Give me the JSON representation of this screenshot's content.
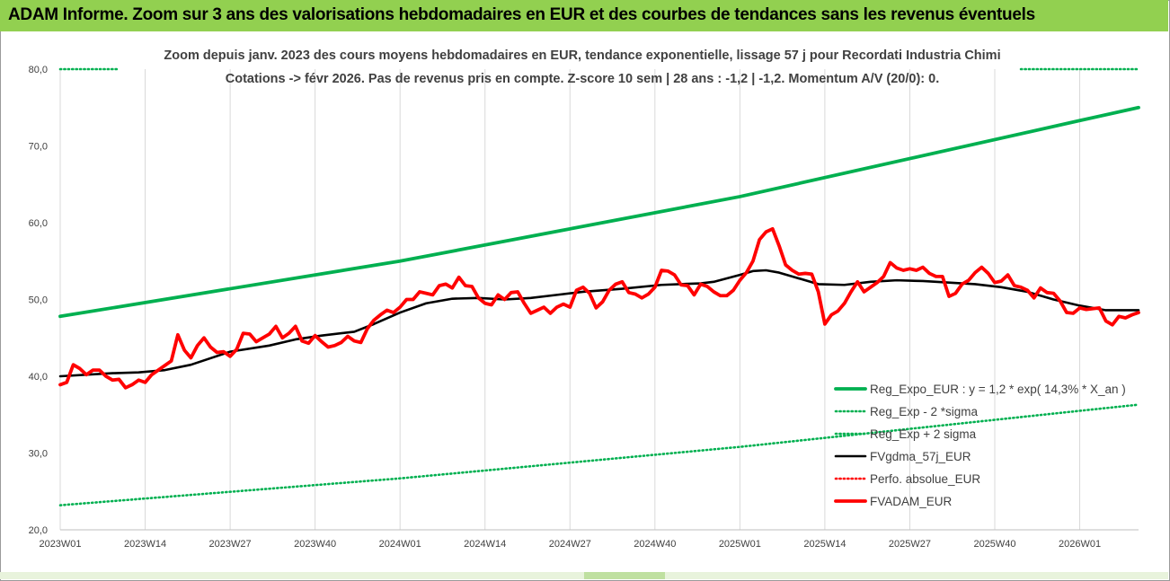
{
  "header": {
    "title": "ADAM Informe. Zoom sur 3 ans des valorisations hebdomadaires en EUR et des courbes de tendances sans les revenus éventuels"
  },
  "colors": {
    "header_bg": "#92d050",
    "green": "#00b050",
    "black": "#000000",
    "red": "#ff0000",
    "grid": "#d9d9d9"
  },
  "chart_data": {
    "type": "line",
    "title_lines": [
      "Zoom depuis janv. 2023 des cours moyens hebdomadaires en EUR, tendance exponentielle, lissage 57 j pour Recordati Industria Chimi",
      "Cotations -> févr 2026.  Pas de revenus pris en compte. Z-score 10 sem | 28 ans : -1,2 | -1,2. Momentum A/V (20/0): 0."
    ],
    "ylim": [
      20,
      80
    ],
    "y_ticks": [
      "20,0",
      "30,0",
      "40,0",
      "50,0",
      "60,0",
      "70,0",
      "80,0"
    ],
    "x_ticks": [
      "2023W01",
      "2023W14",
      "2023W27",
      "2023W40",
      "2024W01",
      "2024W14",
      "2024W27",
      "2024W40",
      "2025W01",
      "2025W14",
      "2025W27",
      "2025W40",
      "2026W01"
    ],
    "x_weeks": 165,
    "grid": "vertical",
    "legend_position": "bottom-right",
    "series": [
      {
        "name": "Reg_Expo_EUR : y = 1,2 * exp( 14,3% *  X_an )",
        "style": "solid-thick",
        "color": "#00b050",
        "x": [
          0,
          52,
          104,
          156,
          165
        ],
        "y": [
          47.8,
          55.0,
          63.4,
          73.3,
          75.0
        ]
      },
      {
        "name": "Reg_Exp - 2 *sigma",
        "style": "dotted",
        "color": "#00b050",
        "x": [
          0,
          52,
          104,
          156,
          165
        ],
        "y": [
          23.2,
          26.7,
          30.8,
          35.5,
          36.3
        ]
      },
      {
        "name": "Reg_Exp + 2 sigma",
        "style": "dotted",
        "color": "#00b050",
        "x": [
          0,
          165
        ],
        "y": [
          80,
          80
        ]
      },
      {
        "name": "FVgdma_57j_EUR",
        "style": "solid",
        "color": "#000000",
        "x": [
          0,
          8,
          12,
          16,
          20,
          26,
          32,
          36,
          40,
          45,
          48,
          52,
          56,
          60,
          64,
          68,
          72,
          76,
          80,
          86,
          92,
          98,
          100,
          104,
          106,
          108,
          110,
          112,
          116,
          120,
          124,
          128,
          132,
          136,
          140,
          144,
          148,
          152,
          156,
          160,
          165
        ],
        "y": [
          40.0,
          40.4,
          40.5,
          40.8,
          41.5,
          43.2,
          44.0,
          44.8,
          45.3,
          45.8,
          46.8,
          48.3,
          49.5,
          50.1,
          50.2,
          50.0,
          50.2,
          50.6,
          51.0,
          51.4,
          51.9,
          52.1,
          52.3,
          53.2,
          53.7,
          53.8,
          53.5,
          53.0,
          52.0,
          51.9,
          52.3,
          52.5,
          52.4,
          52.2,
          52.0,
          51.6,
          51.0,
          50.0,
          49.2,
          48.6,
          48.6
        ]
      },
      {
        "name": "Perfo. absolue_EUR",
        "style": "dotted",
        "color": "#ff0000",
        "x": [],
        "y": []
      },
      {
        "name": "FVADAM_EUR",
        "style": "solid-thick",
        "color": "#ff0000",
        "x": [
          0,
          1,
          2,
          3,
          4,
          5,
          6,
          7,
          8,
          9,
          10,
          11,
          12,
          13,
          14,
          15,
          16,
          17,
          18,
          19,
          20,
          21,
          22,
          23,
          24,
          25,
          26,
          27,
          28,
          29,
          30,
          31,
          32,
          33,
          34,
          35,
          36,
          37,
          38,
          39,
          40,
          41,
          42,
          43,
          44,
          45,
          46,
          47,
          48,
          49,
          50,
          51,
          52,
          53,
          54,
          55,
          56,
          57,
          58,
          59,
          60,
          61,
          62,
          63,
          64,
          65,
          66,
          67,
          68,
          69,
          70,
          71,
          72,
          73,
          74,
          75,
          76,
          77,
          78,
          79,
          80,
          81,
          82,
          83,
          84,
          85,
          86,
          87,
          88,
          89,
          90,
          91,
          92,
          93,
          94,
          95,
          96,
          97,
          98,
          99,
          100,
          101,
          102,
          103,
          104,
          105,
          106,
          107,
          108,
          109,
          110,
          111,
          112,
          113,
          114,
          115,
          116,
          117,
          118,
          119,
          120,
          121,
          122,
          123,
          124,
          125,
          126,
          127,
          128,
          129,
          130,
          131,
          132,
          133,
          134,
          135,
          136,
          137,
          138,
          139,
          140,
          141,
          142,
          143,
          144,
          145,
          146,
          147,
          148,
          149,
          150,
          151,
          152,
          153,
          154,
          155,
          156,
          157,
          158,
          159,
          160,
          161,
          162,
          163,
          164,
          165
        ],
        "y": [
          38.9,
          39.2,
          41.5,
          41.0,
          40.2,
          40.8,
          40.8,
          40.0,
          39.5,
          39.6,
          38.5,
          38.9,
          39.5,
          39.2,
          40.2,
          40.8,
          41.4,
          42.0,
          45.4,
          43.4,
          42.4,
          44.0,
          45.0,
          43.8,
          43.1,
          43.2,
          42.6,
          43.5,
          45.6,
          45.5,
          44.5,
          45.0,
          45.5,
          46.5,
          45.0,
          45.6,
          46.5,
          44.6,
          44.3,
          45.3,
          44.5,
          43.8,
          44.0,
          44.4,
          45.2,
          44.6,
          44.4,
          46.2,
          47.3,
          48.0,
          48.6,
          48.3,
          49.0,
          50.0,
          50.0,
          51.0,
          50.8,
          50.6,
          51.8,
          52.0,
          51.5,
          52.9,
          51.8,
          51.7,
          50.2,
          49.5,
          49.3,
          50.6,
          50.0,
          50.9,
          51.0,
          49.5,
          48.2,
          48.6,
          49.0,
          48.2,
          49.0,
          49.4,
          49.0,
          51.2,
          51.6,
          50.8,
          48.9,
          49.7,
          51.2,
          52.0,
          52.3,
          50.9,
          50.7,
          50.2,
          50.7,
          51.6,
          53.8,
          53.7,
          53.2,
          51.9,
          51.8,
          50.6,
          52.0,
          51.7,
          51.0,
          50.5,
          50.5,
          51.2,
          52.5,
          53.5,
          55.0,
          57.8,
          58.8,
          59.2,
          57.0,
          54.5,
          53.8,
          53.3,
          53.4,
          53.3,
          51.0,
          46.8,
          48.0,
          48.5,
          49.5,
          51.0,
          52.3,
          51.0,
          51.6,
          52.2,
          53.0,
          54.8,
          54.1,
          53.8,
          54.0,
          53.8,
          54.2,
          53.4,
          53.0,
          53.0,
          50.4,
          50.8,
          52.0,
          52.5,
          53.5,
          54.2,
          53.4,
          52.2,
          52.4,
          53.2,
          51.8,
          51.6,
          51.2,
          50.2,
          51.5,
          50.9,
          50.8,
          49.8,
          48.3,
          48.2,
          48.9,
          48.7,
          48.8,
          48.9,
          47.2,
          46.7,
          47.8,
          47.6,
          48.0,
          48.3
        ]
      }
    ]
  }
}
